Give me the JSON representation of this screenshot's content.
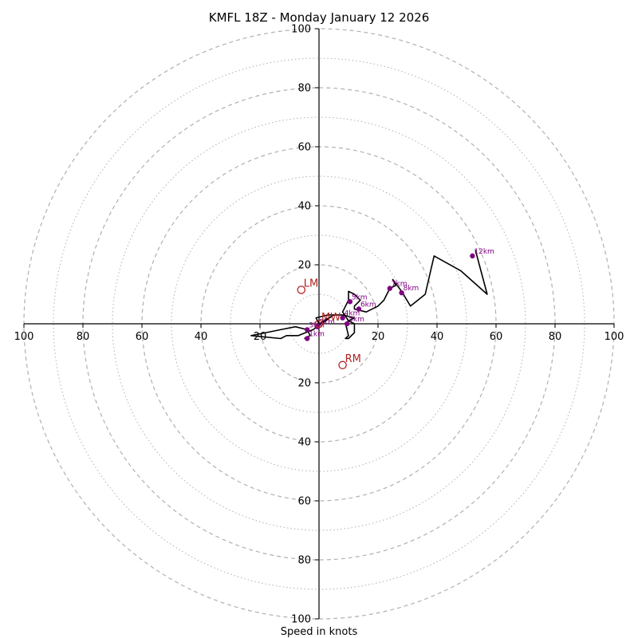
{
  "chart_data": {
    "type": "hodograph",
    "title": "KMFL 18Z - Monday January 12 2026",
    "xlabel": "Speed in knots",
    "xlim": [
      -100,
      100
    ],
    "ylim": [
      -100,
      100
    ],
    "ring_step_major": 20,
    "ring_step_minor": 10,
    "x_ticks": [
      {
        "value": -100,
        "label": "100"
      },
      {
        "value": -80,
        "label": "80"
      },
      {
        "value": -60,
        "label": "60"
      },
      {
        "value": -40,
        "label": "40"
      },
      {
        "value": -20,
        "label": "20"
      },
      {
        "value": 20,
        "label": "20"
      },
      {
        "value": 40,
        "label": "40"
      },
      {
        "value": 60,
        "label": "60"
      },
      {
        "value": 80,
        "label": "80"
      },
      {
        "value": 100,
        "label": "100"
      }
    ],
    "y_ticks": [
      {
        "value": 100,
        "label": "100"
      },
      {
        "value": 80,
        "label": "80"
      },
      {
        "value": 60,
        "label": "60"
      },
      {
        "value": 40,
        "label": "40"
      },
      {
        "value": 20,
        "label": "20"
      },
      {
        "value": -20,
        "label": "20"
      },
      {
        "value": -40,
        "label": "40"
      },
      {
        "value": -60,
        "label": "60"
      },
      {
        "value": -80,
        "label": "80"
      },
      {
        "value": -100,
        "label": "100"
      }
    ],
    "trace": [
      [
        -5,
        -5
      ],
      [
        -3,
        -4
      ],
      [
        -4,
        -2
      ],
      [
        -8,
        -1
      ],
      [
        -13,
        -2
      ],
      [
        -18,
        -3
      ],
      [
        -23,
        -4
      ],
      [
        -13,
        -5
      ],
      [
        -11,
        -4
      ],
      [
        -7,
        -4
      ],
      [
        -2,
        -2
      ],
      [
        5,
        3
      ],
      [
        0,
        0
      ],
      [
        -1,
        2
      ],
      [
        3,
        3
      ],
      [
        8,
        3
      ],
      [
        12,
        2
      ],
      [
        10,
        1
      ],
      [
        9,
        0
      ],
      [
        10,
        -4
      ],
      [
        9,
        -5
      ],
      [
        10,
        -5
      ],
      [
        12,
        -3
      ],
      [
        12,
        0
      ],
      [
        10,
        1
      ],
      [
        8,
        4
      ],
      [
        10,
        8
      ],
      [
        10,
        11
      ],
      [
        12,
        10
      ],
      [
        14,
        8
      ],
      [
        12,
        6
      ],
      [
        12,
        5
      ],
      [
        16,
        4
      ],
      [
        20,
        6
      ],
      [
        22,
        8
      ],
      [
        24,
        12
      ],
      [
        26,
        13
      ],
      [
        25,
        15
      ],
      [
        28,
        11
      ],
      [
        31,
        6
      ],
      [
        36,
        10
      ],
      [
        39,
        23
      ],
      [
        48,
        18
      ],
      [
        57,
        10
      ],
      [
        53,
        25
      ]
    ],
    "height_markers": [
      {
        "label": "1km",
        "u": -4,
        "v": -5
      },
      {
        "label": "2km",
        "u": -0.5,
        "v": -1
      },
      {
        "label": "3km",
        "u": -4,
        "v": -2
      },
      {
        "label": "4km",
        "u": 8,
        "v": 2
      },
      {
        "label": "5km",
        "u": 9.5,
        "v": 0
      },
      {
        "label": "5km",
        "u": 10.5,
        "v": 7.5
      },
      {
        "label": "6km",
        "u": 13.5,
        "v": 5
      },
      {
        "label": "7km",
        "u": 24,
        "v": 12
      },
      {
        "label": "8km",
        "u": 28,
        "v": 10.5
      },
      {
        "label": "12km",
        "u": 52,
        "v": 23
      }
    ],
    "motion_markers": [
      {
        "label": "LM",
        "u": -6,
        "v": 11.5
      },
      {
        "label": "MW",
        "u": 0,
        "v": 0
      },
      {
        "label": "RM",
        "u": 8,
        "v": -14
      }
    ],
    "colors": {
      "trace": "#000000",
      "height_marker": "#800080",
      "motion_marker": "#b22222",
      "ring": "#b0b0b0",
      "axis": "#000000"
    }
  }
}
